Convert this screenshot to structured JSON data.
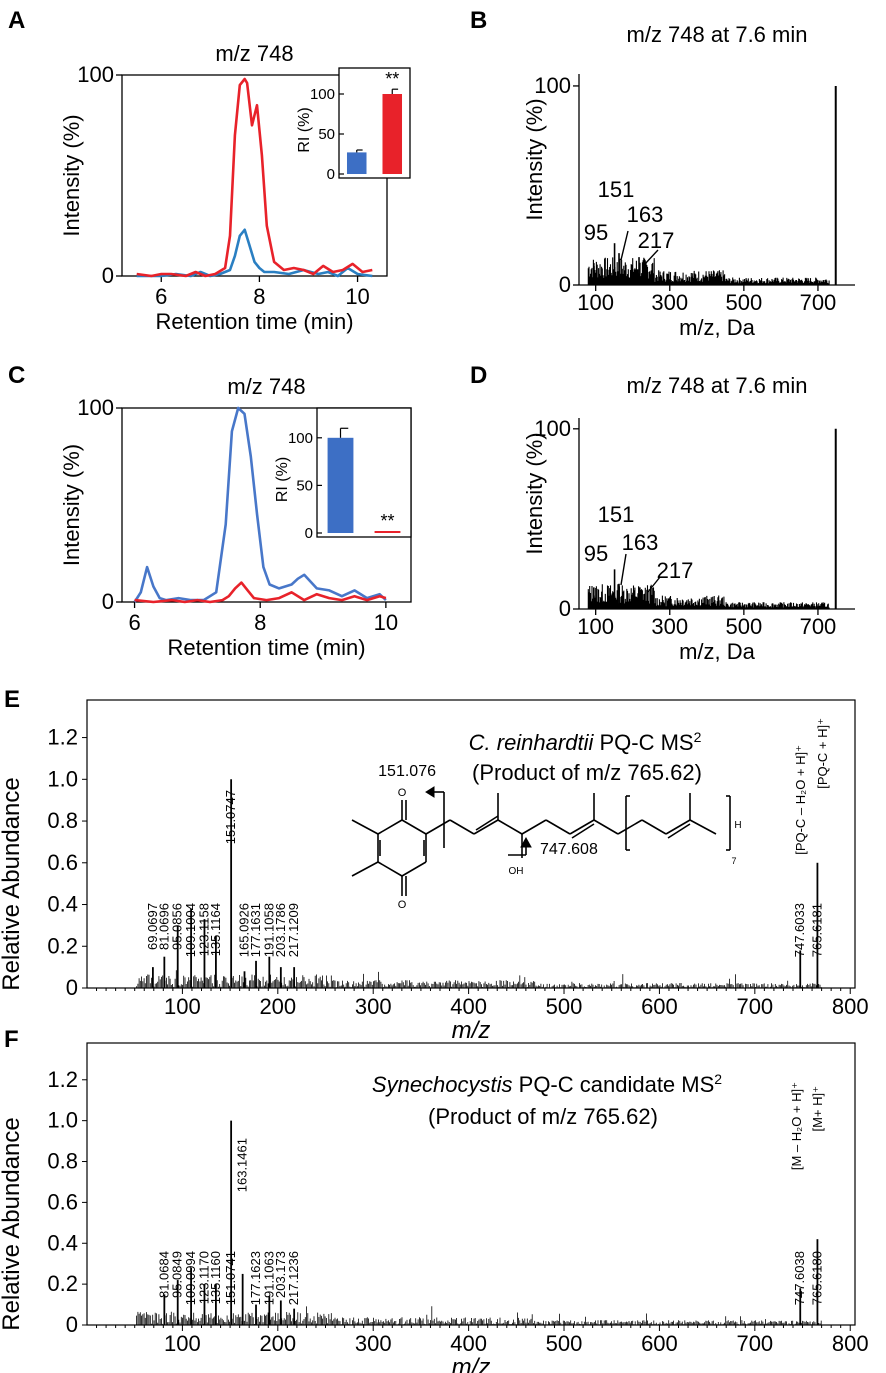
{
  "chart_data": [
    {
      "type": "line",
      "panel": "A",
      "title": "m/z 748",
      "xlabel": "Retention time (min)",
      "ylabel": "Intensity (%)",
      "xlim": [
        5.2,
        10.6
      ],
      "ylim": [
        0,
        100
      ],
      "xticks": [
        6,
        8,
        10
      ],
      "yticks": [
        0,
        100
      ],
      "series": [
        {
          "name": "blue",
          "color": "#2a7fc2",
          "x": [
            5.5,
            5.8,
            6.0,
            6.3,
            6.6,
            6.8,
            7.0,
            7.2,
            7.4,
            7.5,
            7.6,
            7.7,
            7.8,
            7.9,
            8.0,
            8.1,
            8.3,
            8.6,
            8.9,
            9.2,
            9.4,
            9.6,
            9.8,
            10.0,
            10.3
          ],
          "y": [
            0,
            0,
            0,
            1,
            0,
            2,
            0,
            1,
            3,
            10,
            20,
            23,
            15,
            7,
            4,
            2,
            2,
            1,
            3,
            1,
            2,
            0,
            4,
            1,
            0
          ]
        },
        {
          "name": "red",
          "color": "#e8222a",
          "x": [
            5.5,
            5.8,
            6.0,
            6.2,
            6.5,
            6.7,
            6.9,
            7.1,
            7.3,
            7.4,
            7.5,
            7.6,
            7.7,
            7.75,
            7.85,
            7.95,
            8.05,
            8.15,
            8.3,
            8.5,
            8.7,
            8.9,
            9.1,
            9.3,
            9.5,
            9.7,
            9.9,
            10.1,
            10.3
          ],
          "y": [
            1,
            0,
            1,
            1,
            0,
            2,
            0,
            1,
            4,
            20,
            70,
            95,
            98,
            96,
            75,
            85,
            60,
            25,
            7,
            3,
            4,
            3,
            1,
            5,
            2,
            3,
            6,
            2,
            3
          ]
        }
      ],
      "inset": {
        "type": "bar",
        "ylabel": "RI (%)",
        "ylim": [
          0,
          125
        ],
        "yticks": [
          0,
          50,
          100
        ],
        "bars": [
          {
            "value": 27,
            "error": 3,
            "color": "#3d6fc5"
          },
          {
            "value": 100,
            "error": 6,
            "color": "#e8222a"
          }
        ],
        "annotation": "**"
      }
    },
    {
      "type": "bar",
      "panel": "B",
      "title": "m/z 748 at 7.6 min",
      "xlabel": "m/z, Da",
      "ylabel": "Intensity (%)",
      "xlim": [
        55,
        800
      ],
      "ylim": [
        0,
        106
      ],
      "xticks": [
        100,
        300,
        500,
        700
      ],
      "yticks": [
        0,
        100
      ],
      "x": [
        95,
        151,
        163,
        217,
        748
      ],
      "values": [
        11,
        21,
        16,
        14,
        100
      ],
      "labels": [
        "95",
        "151",
        "163",
        "217",
        ""
      ]
    },
    {
      "type": "line",
      "panel": "C",
      "title": "m/z 748",
      "xlabel": "Retention time (min)",
      "ylabel": "Intensity (%)",
      "xlim": [
        5.8,
        10.4
      ],
      "ylim": [
        0,
        100
      ],
      "xticks": [
        6,
        8,
        10
      ],
      "yticks": [
        0,
        100
      ],
      "series": [
        {
          "name": "blue",
          "color": "#4877c9",
          "x": [
            6.0,
            6.1,
            6.2,
            6.3,
            6.4,
            6.5,
            6.7,
            6.9,
            7.1,
            7.3,
            7.45,
            7.55,
            7.65,
            7.75,
            7.85,
            7.95,
            8.05,
            8.15,
            8.3,
            8.5,
            8.6,
            8.7,
            8.9,
            9.1,
            9.3,
            9.5,
            9.7,
            9.9,
            10.0
          ],
          "y": [
            0,
            5,
            18,
            8,
            2,
            1,
            2,
            1,
            1,
            5,
            40,
            88,
            100,
            97,
            75,
            45,
            18,
            9,
            7,
            9,
            12,
            14,
            7,
            6,
            3,
            6,
            2,
            4,
            1
          ]
        },
        {
          "name": "red",
          "color": "#e8222a",
          "x": [
            6.0,
            6.3,
            6.6,
            6.8,
            7.0,
            7.2,
            7.4,
            7.5,
            7.6,
            7.7,
            7.8,
            7.9,
            8.1,
            8.3,
            8.5,
            8.7,
            8.9,
            9.1,
            9.3,
            9.5,
            9.7,
            9.9,
            10.0
          ],
          "y": [
            1,
            0,
            1,
            0,
            1,
            0,
            1,
            3,
            7,
            10,
            6,
            2,
            1,
            2,
            5,
            1,
            4,
            2,
            1,
            3,
            1,
            3,
            2
          ]
        }
      ],
      "inset": {
        "type": "bar",
        "ylabel": "RI (%)",
        "ylim": [
          0,
          125
        ],
        "yticks": [
          0,
          50,
          100
        ],
        "bars": [
          {
            "value": 100,
            "error": 10,
            "color": "#3d6fc5"
          },
          {
            "value": 1,
            "error": 0,
            "color": "#e8222a"
          }
        ],
        "annotation": "**"
      }
    },
    {
      "type": "bar",
      "panel": "D",
      "title": "m/z 748 at 7.6 min",
      "xlabel": "m/z, Da",
      "ylabel": "Intensity (%)",
      "xlim": [
        55,
        800
      ],
      "ylim": [
        0,
        106
      ],
      "xticks": [
        100,
        300,
        500,
        700
      ],
      "yticks": [
        0,
        100
      ],
      "x": [
        95,
        151,
        163,
        217,
        748
      ],
      "values": [
        12,
        22,
        14,
        12,
        100
      ],
      "labels": [
        "95",
        "151",
        "163",
        "217",
        ""
      ]
    },
    {
      "type": "bar",
      "panel": "E",
      "title_italic": "C. reinhardtii",
      "title_rest": "PQ-C MS",
      "title_sup": "2",
      "subtitle": "(Product of m/z 765.62)",
      "xlabel": "m/z",
      "ylabel": "Relative Abundance",
      "xlim": [
        0,
        805
      ],
      "ylim": [
        0,
        1.38
      ],
      "xticks": [
        100,
        200,
        300,
        400,
        500,
        600,
        700,
        800
      ],
      "yticks": [
        0,
        0.2,
        0.4,
        0.6,
        0.8,
        1.0,
        1.2
      ],
      "x": [
        69.0697,
        81.0696,
        95.0856,
        109.1004,
        123.1158,
        135.1164,
        151.0747,
        165.0926,
        177.1631,
        191.1058,
        203.1786,
        217.1209,
        747.6033,
        765.6181
      ],
      "values": [
        0.1,
        0.15,
        0.3,
        0.38,
        0.33,
        0.25,
        1.0,
        0.08,
        0.13,
        0.15,
        0.1,
        0.1,
        0.18,
        0.6
      ],
      "labels": [
        "69.0697",
        "81.0696",
        "95.0856",
        "109.1004",
        "123.1158",
        "135.1164",
        "151.0747",
        "165.0926",
        "177.1631",
        "191.1058",
        "203.1786",
        "217.1209",
        "747.6033",
        "765.6181"
      ],
      "ion_labels": [
        "[PQ-C – H₂O + H]⁺",
        "[PQ-C + H]⁺"
      ],
      "structure_labels": [
        "151.076",
        "747.608",
        "OH",
        "H",
        "7",
        "O",
        "O"
      ]
    },
    {
      "type": "bar",
      "panel": "F",
      "title_italic": "Synechocystis",
      "title_rest": "PQ-C candidate MS",
      "title_sup": "2",
      "subtitle": "(Product of m/z 765.62)",
      "xlabel": "m/z",
      "ylabel": "Relative Abundance",
      "xlim": [
        0,
        805
      ],
      "ylim": [
        0,
        1.38
      ],
      "xticks": [
        100,
        200,
        300,
        400,
        500,
        600,
        700,
        800
      ],
      "yticks": [
        0,
        0.2,
        0.4,
        0.6,
        0.8,
        1.0,
        1.2
      ],
      "x": [
        81.0684,
        95.0849,
        109.0994,
        123.117,
        135.116,
        151.0741,
        163.1461,
        177.1623,
        191.1063,
        203.173,
        217.1236,
        747.6038,
        765.618
      ],
      "values": [
        0.15,
        0.22,
        0.28,
        0.2,
        0.2,
        1.0,
        0.25,
        0.1,
        0.14,
        0.12,
        0.08,
        0.18,
        0.42
      ],
      "labels": [
        "81.0684",
        "95.0849",
        "109.0994",
        "123.1170",
        "135.1160",
        "151.0741",
        "163.1461",
        "177.1623",
        "191.1063",
        "203.173",
        "217.1236",
        "747.6038",
        "765.6180"
      ],
      "ion_labels": [
        "[M – H₂O + H]⁺",
        "[M+ H]⁺"
      ]
    }
  ]
}
